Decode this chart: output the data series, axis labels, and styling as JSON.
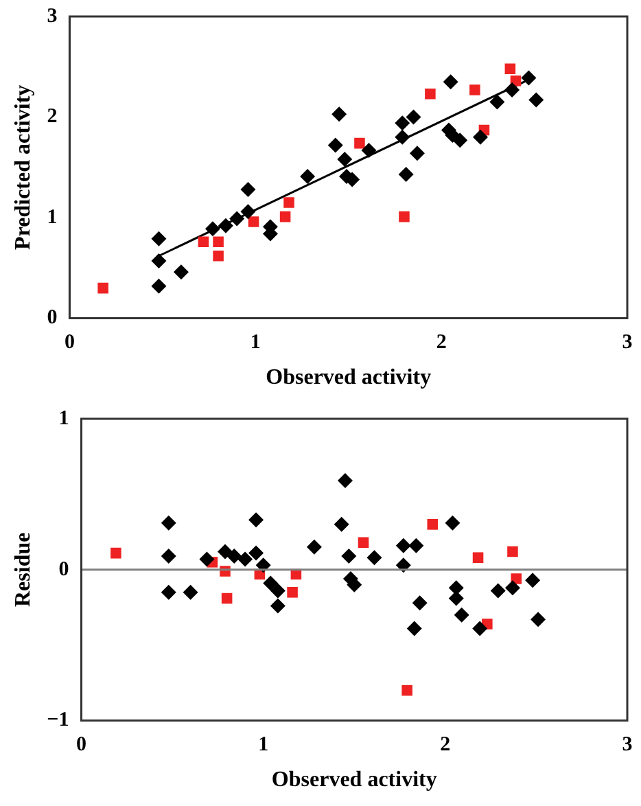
{
  "chart_data": [
    {
      "type": "scatter",
      "xlabel": "Observed activity",
      "ylabel": "Predicted activity",
      "xlim": [
        0,
        3
      ],
      "ylim": [
        0,
        3
      ],
      "xticks": [
        0,
        1,
        2,
        3
      ],
      "yticks": [
        0,
        1,
        2,
        3
      ],
      "grid": false,
      "legend": false,
      "series": [
        {
          "color": "#000000",
          "marker": "diamond",
          "x": [
            0.48,
            0.48,
            0.48,
            0.6,
            0.77,
            0.84,
            0.9,
            0.96,
            0.96,
            1.08,
            1.08,
            1.28,
            1.43,
            1.45,
            1.48,
            1.49,
            1.52,
            1.61,
            1.79,
            1.79,
            1.81,
            1.85,
            1.87,
            2.05,
            2.04,
            2.06,
            2.1,
            2.21,
            2.3,
            2.38,
            2.47,
            2.51
          ],
          "values": [
            0.79,
            0.57,
            0.32,
            0.46,
            0.89,
            0.92,
            0.99,
            1.28,
            1.06,
            0.91,
            0.84,
            1.41,
            1.72,
            2.03,
            1.58,
            1.41,
            1.38,
            1.67,
            1.8,
            1.94,
            1.43,
            2.0,
            1.64,
            2.35,
            1.87,
            1.82,
            1.77,
            1.8,
            2.15,
            2.27,
            2.39,
            2.17
          ]
        },
        {
          "color": "#ee2222",
          "marker": "square",
          "x": [
            0.18,
            0.72,
            0.8,
            0.8,
            0.99,
            1.16,
            1.18,
            1.56,
            1.8,
            1.94,
            2.18,
            2.23,
            2.37,
            2.4
          ],
          "values": [
            0.3,
            0.76,
            0.76,
            0.62,
            0.96,
            1.01,
            1.15,
            1.74,
            1.01,
            2.23,
            2.27,
            1.87,
            2.48,
            2.36
          ]
        },
        {
          "type": "line",
          "color": "#000000",
          "marker": "none",
          "x": [
            0.48,
            2.49
          ],
          "values": [
            0.62,
            2.39
          ]
        }
      ]
    },
    {
      "type": "scatter",
      "xlabel": "Observed activity",
      "ylabel": "Residue",
      "xlim": [
        0,
        3
      ],
      "ylim": [
        -1,
        1
      ],
      "xticks": [
        0,
        1,
        2,
        3
      ],
      "yticks": [
        {
          "value": -1,
          "label": "−1"
        },
        0,
        1
      ],
      "grid": false,
      "legend": false,
      "ref_lines": [
        {
          "axis": "y",
          "value": 0,
          "color": "#808080"
        }
      ],
      "series": [
        {
          "color": "#000000",
          "marker": "diamond",
          "x": [
            0.48,
            0.48,
            0.48,
            0.6,
            0.69,
            0.79,
            0.84,
            0.9,
            0.96,
            0.96,
            1.0,
            1.04,
            1.08,
            1.08,
            1.28,
            1.45,
            1.43,
            1.47,
            1.48,
            1.5,
            1.61,
            1.77,
            1.77,
            1.84,
            1.83,
            1.86,
            2.04,
            2.06,
            2.06,
            2.09,
            2.19,
            2.29,
            2.37,
            2.48,
            2.51
          ],
          "values": [
            0.31,
            0.09,
            -0.15,
            -0.15,
            0.07,
            0.12,
            0.09,
            0.07,
            0.11,
            0.33,
            0.03,
            -0.09,
            -0.14,
            -0.24,
            0.15,
            0.59,
            0.3,
            0.09,
            -0.06,
            -0.1,
            0.08,
            0.16,
            0.03,
            0.16,
            -0.39,
            -0.22,
            0.31,
            -0.12,
            -0.19,
            -0.3,
            -0.39,
            -0.14,
            -0.12,
            -0.07,
            -0.33
          ]
        },
        {
          "color": "#ee2222",
          "marker": "square",
          "x": [
            0.19,
            0.72,
            0.79,
            0.8,
            0.98,
            1.16,
            1.18,
            1.55,
            1.79,
            1.93,
            2.18,
            2.23,
            2.37,
            2.39
          ],
          "values": [
            0.11,
            0.05,
            -0.01,
            -0.19,
            -0.03,
            -0.15,
            -0.03,
            0.18,
            -0.8,
            0.3,
            0.08,
            -0.36,
            0.12,
            -0.06
          ]
        }
      ]
    }
  ]
}
